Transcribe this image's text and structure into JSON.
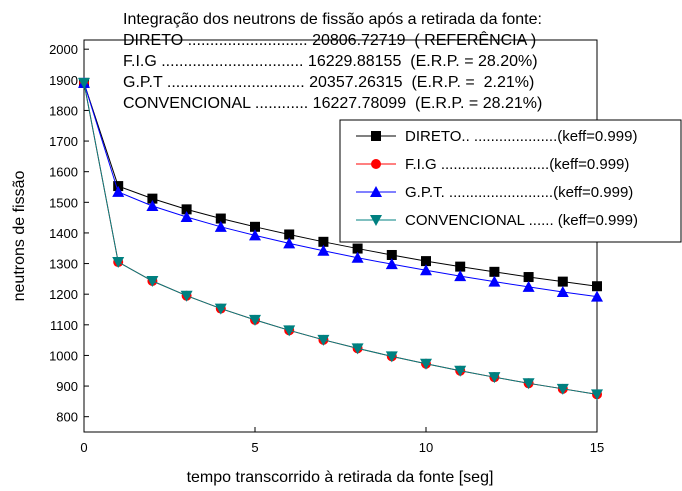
{
  "chart_data": {
    "type": "line",
    "annotations": [
      "Integração dos neutrons de fissão após a retirada da fonte:",
      "DIRETO ........................... 20806.72719  ( REFERÊNCIA )",
      "F.I.G ................................ 16229.88155  (E.R.P. = 28.20%)",
      "G.P.T ............................... 20357.26315  (E.R.P. =  2.21%)",
      "CONVENCIONAL ............ 16227.78099  (E.R.P. = 28.21%)"
    ],
    "xlabel": "tempo transcorrido à retirada da fonte [seg]",
    "ylabel": "neutrons de fissão",
    "x": [
      0,
      1,
      2,
      3,
      4,
      5,
      6,
      7,
      8,
      9,
      10,
      11,
      12,
      13,
      14,
      15
    ],
    "series": [
      {
        "name": "DIRETO.. ....................(keff=0.999)",
        "color": "#000000",
        "marker": "square",
        "values": [
          1890,
          1553,
          1512,
          1477,
          1447,
          1420,
          1395,
          1371,
          1349,
          1328,
          1308,
          1290,
          1273,
          1256,
          1241,
          1226
        ]
      },
      {
        "name": "F.I.G ..........................(keff=0.999)",
        "color": "#ff0000",
        "marker": "circle",
        "values": [
          1890,
          1305,
          1243,
          1195,
          1153,
          1116,
          1082,
          1051,
          1023,
          997,
          973,
          950,
          929,
          909,
          891,
          873
        ]
      },
      {
        "name": "G.P.T. .........................(keff=0.999)",
        "color": "#0000ff",
        "marker": "triangle-up",
        "values": [
          1890,
          1534,
          1488,
          1452,
          1420,
          1392,
          1366,
          1342,
          1319,
          1298,
          1278,
          1259,
          1241,
          1224,
          1207,
          1192
        ]
      },
      {
        "name": "CONVENCIONAL ...... (keff=0.999)",
        "color": "#008080",
        "marker": "triangle-down",
        "values": [
          1890,
          1305,
          1243,
          1195,
          1153,
          1116,
          1082,
          1051,
          1023,
          997,
          973,
          950,
          929,
          909,
          891,
          873
        ]
      }
    ],
    "xlim": [
      0,
      15
    ],
    "xticks": [
      0,
      5,
      10,
      15
    ],
    "ylim": [
      750,
      2030
    ],
    "yticks": [
      800,
      900,
      1000,
      1100,
      1200,
      1300,
      1400,
      1500,
      1600,
      1700,
      1800,
      1900,
      2000
    ],
    "grid": false,
    "legend": "upper right"
  }
}
